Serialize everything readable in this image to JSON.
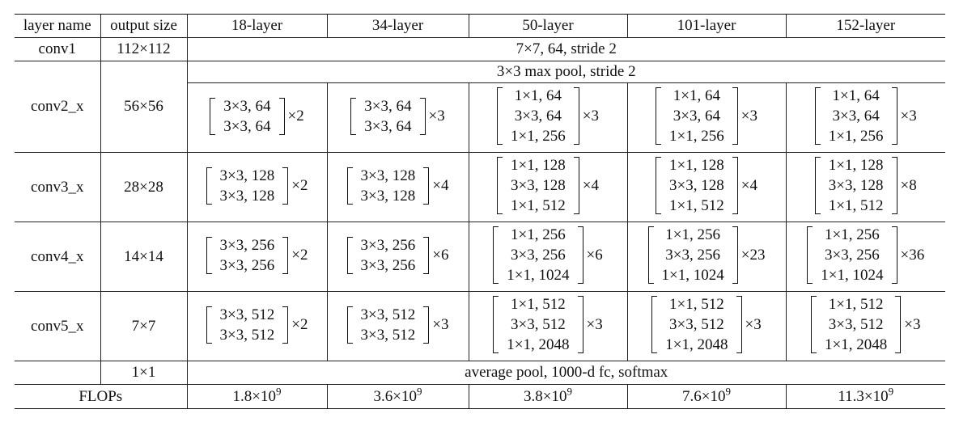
{
  "header": {
    "layer_name": "layer name",
    "output_size": "output size",
    "columns": [
      "18-layer",
      "34-layer",
      "50-layer",
      "101-layer",
      "152-layer"
    ]
  },
  "conv1": {
    "name": "conv1",
    "size": "112×112",
    "spec": "7×7, 64, stride 2"
  },
  "conv2": {
    "name": "conv2_x",
    "size": "56×56",
    "pool": "3×3 max pool, stride 2",
    "cells": [
      {
        "lines": [
          "3×3, 64",
          "3×3, 64"
        ],
        "mult": "×2"
      },
      {
        "lines": [
          "3×3, 64",
          "3×3, 64"
        ],
        "mult": "×3"
      },
      {
        "lines": [
          "1×1, 64",
          "3×3, 64",
          "1×1, 256"
        ],
        "mult": "×3"
      },
      {
        "lines": [
          "1×1, 64",
          "3×3, 64",
          "1×1, 256"
        ],
        "mult": "×3"
      },
      {
        "lines": [
          "1×1, 64",
          "3×3, 64",
          "1×1, 256"
        ],
        "mult": "×3"
      }
    ]
  },
  "conv3": {
    "name": "conv3_x",
    "size": "28×28",
    "cells": [
      {
        "lines": [
          "3×3, 128",
          "3×3, 128"
        ],
        "mult": "×2"
      },
      {
        "lines": [
          "3×3, 128",
          "3×3, 128"
        ],
        "mult": "×4"
      },
      {
        "lines": [
          "1×1, 128",
          "3×3, 128",
          "1×1, 512"
        ],
        "mult": "×4"
      },
      {
        "lines": [
          "1×1, 128",
          "3×3, 128",
          "1×1, 512"
        ],
        "mult": "×4"
      },
      {
        "lines": [
          "1×1, 128",
          "3×3, 128",
          "1×1, 512"
        ],
        "mult": "×8"
      }
    ]
  },
  "conv4": {
    "name": "conv4_x",
    "size": "14×14",
    "cells": [
      {
        "lines": [
          "3×3, 256",
          "3×3, 256"
        ],
        "mult": "×2"
      },
      {
        "lines": [
          "3×3, 256",
          "3×3, 256"
        ],
        "mult": "×6"
      },
      {
        "lines": [
          "1×1, 256",
          "3×3, 256",
          "1×1, 1024"
        ],
        "mult": "×6"
      },
      {
        "lines": [
          "1×1, 256",
          "3×3, 256",
          "1×1, 1024"
        ],
        "mult": "×23"
      },
      {
        "lines": [
          "1×1, 256",
          "3×3, 256",
          "1×1, 1024"
        ],
        "mult": "×36"
      }
    ]
  },
  "conv5": {
    "name": "conv5_x",
    "size": "7×7",
    "cells": [
      {
        "lines": [
          "3×3, 512",
          "3×3, 512"
        ],
        "mult": "×2"
      },
      {
        "lines": [
          "3×3, 512",
          "3×3, 512"
        ],
        "mult": "×3"
      },
      {
        "lines": [
          "1×1, 512",
          "3×3, 512",
          "1×1, 2048"
        ],
        "mult": "×3"
      },
      {
        "lines": [
          "1×1, 512",
          "3×3, 512",
          "1×1, 2048"
        ],
        "mult": "×3"
      },
      {
        "lines": [
          "1×1, 512",
          "3×3, 512",
          "1×1, 2048"
        ],
        "mult": "×3"
      }
    ]
  },
  "final": {
    "size": "1×1",
    "spec": "average pool, 1000-d fc, softmax"
  },
  "flops": {
    "label": "FLOPs",
    "values": [
      {
        "mantissa": "1.8×10",
        "exp": "9"
      },
      {
        "mantissa": "3.6×10",
        "exp": "9"
      },
      {
        "mantissa": "3.8×10",
        "exp": "9"
      },
      {
        "mantissa": "7.6×10",
        "exp": "9"
      },
      {
        "mantissa": "11.3×10",
        "exp": "9"
      }
    ]
  }
}
